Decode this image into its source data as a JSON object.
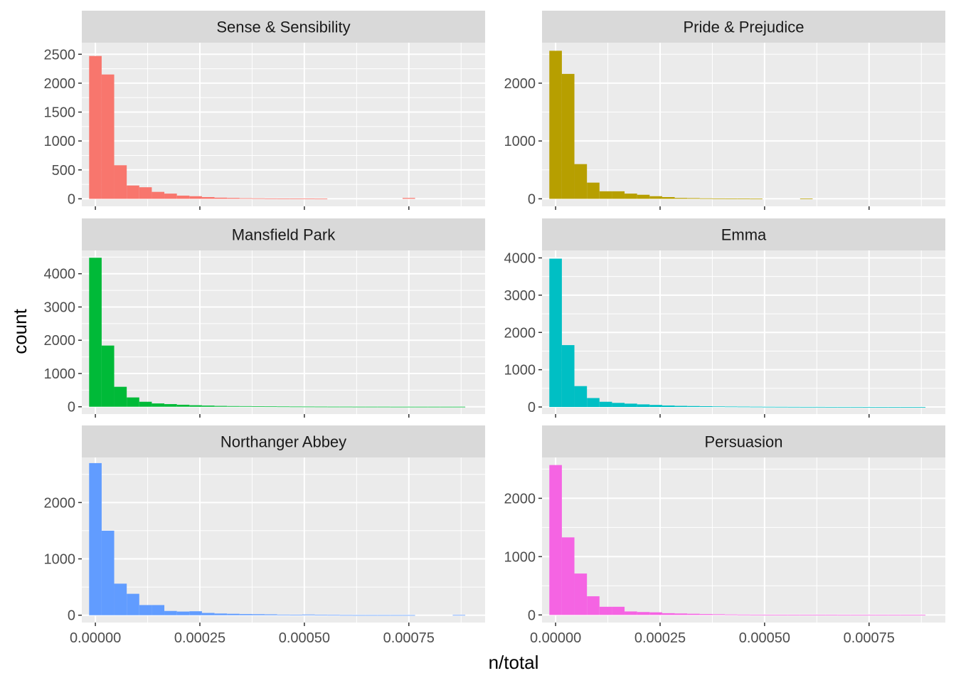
{
  "chart_data": {
    "type": "bar",
    "layout": "facet-wrap",
    "xlabel": "n/total",
    "ylabel": "count",
    "x_range": [
      -3.25e-05,
      0.0009325
    ],
    "x_ticks": [
      0,
      0.00025,
      0.0005,
      0.00075
    ],
    "x_tick_labels": [
      "0.00000",
      "0.00025",
      "0.00050",
      "0.00075"
    ],
    "bin_width": 3e-05,
    "bin_start": -1.5e-05,
    "grid": true,
    "legend": "none",
    "facets": [
      {
        "name": "Sense & Sensibility",
        "color": "#F8766D",
        "ylim": [
          -130,
          2700
        ],
        "y_ticks": [
          0,
          500,
          1000,
          1500,
          2000,
          2500
        ],
        "counts": [
          2470,
          2150,
          580,
          230,
          200,
          120,
          90,
          55,
          45,
          30,
          20,
          15,
          10,
          8,
          6,
          5,
          4,
          3,
          2,
          0,
          0,
          0,
          0,
          0,
          0,
          15,
          0,
          0,
          0,
          0
        ]
      },
      {
        "name": "Pride & Prejudice",
        "color": "#B79F00",
        "ylim": [
          -130,
          2700
        ],
        "y_ticks": [
          0,
          1000,
          2000
        ],
        "counts": [
          2560,
          2160,
          600,
          280,
          130,
          130,
          90,
          70,
          45,
          30,
          15,
          12,
          8,
          6,
          4,
          3,
          2,
          0,
          0,
          0,
          5,
          0,
          0,
          0,
          0,
          0,
          0,
          0,
          0,
          0
        ]
      },
      {
        "name": "Mansfield Park",
        "color": "#00BA38",
        "ylim": [
          -220,
          4700
        ],
        "y_ticks": [
          0,
          1000,
          2000,
          3000,
          4000
        ],
        "counts": [
          4480,
          1840,
          600,
          280,
          150,
          100,
          80,
          60,
          45,
          35,
          25,
          20,
          18,
          14,
          10,
          8,
          6,
          5,
          4,
          3,
          3,
          2,
          2,
          2,
          1,
          1,
          1,
          1,
          1,
          1
        ]
      },
      {
        "name": "Emma",
        "color": "#00BFC4",
        "ylim": [
          -190,
          4200
        ],
        "y_ticks": [
          0,
          1000,
          2000,
          3000,
          4000
        ],
        "counts": [
          3980,
          1660,
          560,
          240,
          140,
          110,
          90,
          70,
          55,
          40,
          30,
          25,
          20,
          15,
          12,
          10,
          8,
          6,
          5,
          4,
          3,
          3,
          2,
          2,
          2,
          1,
          1,
          1,
          1,
          1
        ]
      },
      {
        "name": "Northanger Abbey",
        "color": "#619CFF",
        "ylim": [
          -130,
          2800
        ],
        "y_ticks": [
          0,
          1000,
          2000
        ],
        "counts": [
          2700,
          1500,
          560,
          380,
          180,
          180,
          75,
          65,
          70,
          40,
          30,
          25,
          20,
          18,
          15,
          10,
          8,
          12,
          6,
          5,
          3,
          2,
          2,
          2,
          2,
          2,
          0,
          0,
          0,
          4
        ]
      },
      {
        "name": "Persuasion",
        "color": "#F564E3",
        "ylim": [
          -130,
          2700
        ],
        "y_ticks": [
          0,
          1000,
          2000
        ],
        "counts": [
          2570,
          1330,
          710,
          320,
          140,
          140,
          60,
          50,
          45,
          30,
          25,
          20,
          15,
          12,
          8,
          6,
          5,
          4,
          3,
          3,
          2,
          2,
          2,
          1,
          1,
          1,
          1,
          1,
          1,
          1
        ]
      }
    ]
  }
}
